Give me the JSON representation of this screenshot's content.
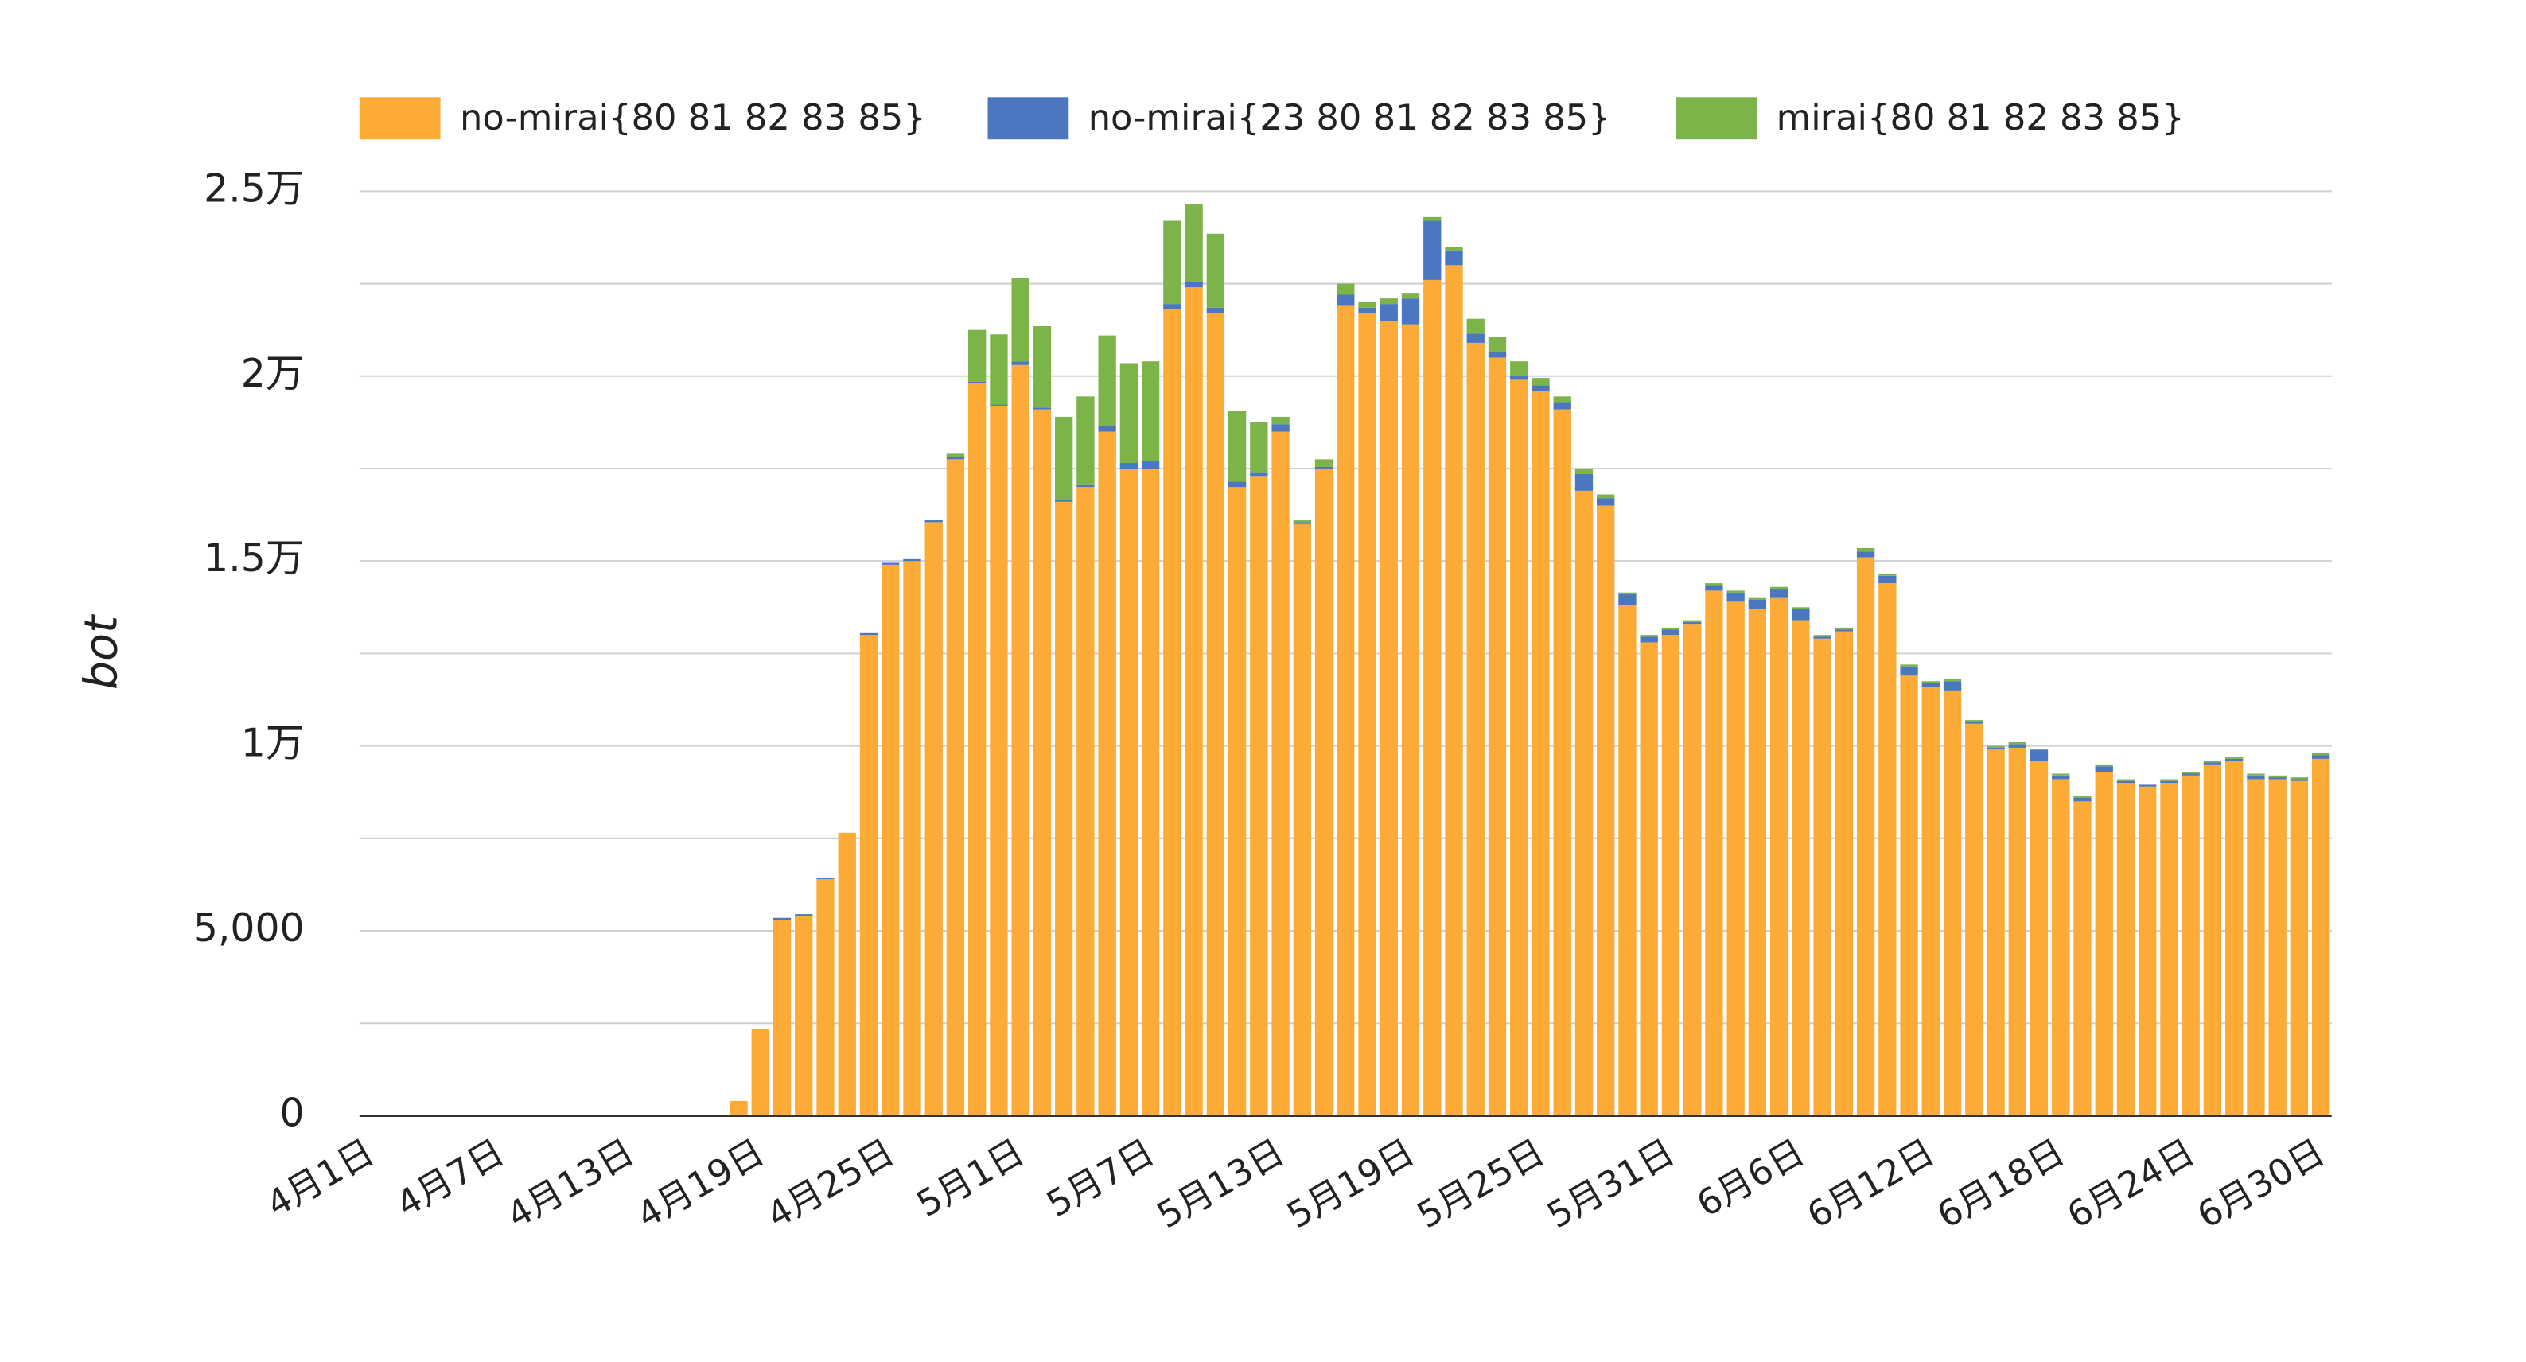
{
  "chart_data": {
    "type": "stacked-bar",
    "y_label": "bot",
    "categories": [
      "4月1日",
      null,
      null,
      null,
      null,
      null,
      "4月7日",
      null,
      null,
      null,
      null,
      null,
      "4月13日",
      null,
      null,
      null,
      null,
      null,
      "4月19日",
      null,
      null,
      null,
      null,
      null,
      "4月25日",
      null,
      null,
      null,
      null,
      null,
      "5月1日",
      null,
      null,
      null,
      null,
      null,
      "5月7日",
      null,
      null,
      null,
      null,
      null,
      "5月13日",
      null,
      null,
      null,
      null,
      null,
      "5月19日",
      null,
      null,
      null,
      null,
      null,
      "5月25日",
      null,
      null,
      null,
      null,
      null,
      "5月31日",
      null,
      null,
      null,
      null,
      null,
      "6月6日",
      null,
      null,
      null,
      null,
      null,
      "6月12日",
      null,
      null,
      null,
      null,
      null,
      "6月18日",
      null,
      null,
      null,
      null,
      null,
      "6月24日",
      null,
      null,
      null,
      null,
      null,
      "6月30日"
    ],
    "series": [
      {
        "name": "no-mirai{80 81 82 83 85}",
        "color": "#fbab36",
        "values": [
          0,
          0,
          0,
          0,
          0,
          0,
          0,
          0,
          0,
          0,
          0,
          0,
          0,
          0,
          0,
          0,
          0,
          400,
          2350,
          5300,
          5400,
          6400,
          7650,
          13000,
          14900,
          15000,
          16050,
          17750,
          19800,
          19200,
          20300,
          19100,
          16600,
          17000,
          18500,
          17500,
          17500,
          21800,
          22400,
          21700,
          17000,
          17300,
          18500,
          16000,
          17500,
          21900,
          21700,
          21500,
          21400,
          22600,
          23000,
          20900,
          20500,
          19900,
          19600,
          19100,
          16900,
          16500,
          13800,
          12800,
          13000,
          13300,
          14200,
          13900,
          13700,
          14000,
          13400,
          12900,
          13100,
          15100,
          14400,
          11900,
          11600,
          11500,
          10600,
          9900,
          9950,
          9600,
          9100,
          8500,
          9300,
          9000,
          8900,
          9000,
          9200,
          9500,
          9600,
          9100,
          9100,
          9050,
          9650
        ]
      },
      {
        "name": "no-mirai{23 80 81 82 83 85}",
        "color": "#4a77c0",
        "values": [
          0,
          0,
          0,
          0,
          0,
          0,
          0,
          0,
          0,
          0,
          0,
          0,
          0,
          0,
          0,
          0,
          0,
          0,
          0,
          50,
          50,
          30,
          0,
          50,
          50,
          50,
          50,
          50,
          50,
          30,
          100,
          50,
          50,
          50,
          150,
          150,
          200,
          150,
          150,
          150,
          150,
          100,
          200,
          50,
          50,
          300,
          150,
          450,
          700,
          1600,
          400,
          250,
          150,
          100,
          150,
          200,
          450,
          200,
          300,
          150,
          150,
          50,
          150,
          250,
          250,
          250,
          300,
          50,
          50,
          150,
          200,
          250,
          100,
          250,
          50,
          50,
          100,
          300,
          100,
          100,
          150,
          50,
          50,
          50,
          50,
          50,
          50,
          100,
          50,
          50,
          100
        ]
      },
      {
        "name": "mirai{80 81 82 83 85}",
        "color": "#7db44a",
        "values": [
          0,
          0,
          0,
          0,
          0,
          0,
          0,
          0,
          0,
          0,
          0,
          0,
          0,
          0,
          0,
          0,
          0,
          0,
          0,
          0,
          0,
          0,
          0,
          0,
          0,
          0,
          0,
          100,
          1400,
          1900,
          2250,
          2200,
          2250,
          2400,
          2450,
          2700,
          2700,
          2250,
          2100,
          2000,
          1900,
          1350,
          200,
          50,
          200,
          300,
          150,
          150,
          150,
          100,
          100,
          400,
          400,
          400,
          200,
          150,
          150,
          100,
          50,
          50,
          50,
          50,
          50,
          50,
          50,
          50,
          50,
          50,
          50,
          100,
          50,
          50,
          50,
          50,
          50,
          50,
          50,
          0,
          50,
          50,
          50,
          50,
          0,
          50,
          50,
          50,
          50,
          50,
          50,
          50,
          50
        ]
      }
    ],
    "ylim": [
      0,
      25000
    ],
    "yticks": [
      0,
      {
        "value": 5000,
        "label": "5,000"
      },
      {
        "value": 10000,
        "label": "1万"
      },
      {
        "value": 15000,
        "label": "1.5万"
      },
      {
        "value": 20000,
        "label": "2万"
      },
      {
        "value": 25000,
        "label": "2.5万"
      }
    ],
    "minor_yticks": [
      2500,
      7500,
      12500,
      17500,
      22500
    ],
    "grid": true,
    "legend": "top"
  }
}
